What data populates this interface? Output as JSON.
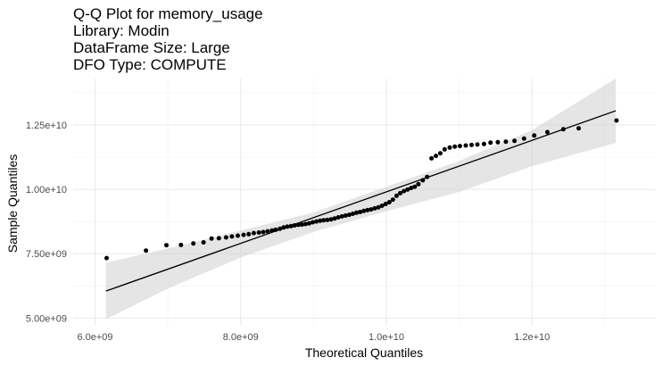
{
  "chart_data": {
    "type": "scatter",
    "title_lines": [
      "Q-Q Plot for memory_usage",
      "Library: Modin",
      "DataFrame Size: Large",
      "DFO Type: COMPUTE"
    ],
    "xlabel": "Theoretical Quantiles",
    "ylabel": "Sample Quantiles",
    "xlim": [
      5700000000.0,
      13700000000.0
    ],
    "ylim": [
      4700000000.0,
      14300000000.0
    ],
    "x_ticks": [
      {
        "value": 6000000000.0,
        "label": "6.0e+09"
      },
      {
        "value": 8000000000.0,
        "label": "8.0e+09"
      },
      {
        "value": 10000000000.0,
        "label": "1.0e+10"
      },
      {
        "value": 12000000000.0,
        "label": "1.2e+10"
      }
    ],
    "y_ticks": [
      {
        "value": 5000000000.0,
        "label": "5.00e+09"
      },
      {
        "value": 7500000000.0,
        "label": "7.50e+09"
      },
      {
        "value": 10000000000.0,
        "label": "1.00e+10"
      },
      {
        "value": 12500000000.0,
        "label": "1.25e+10"
      }
    ],
    "grid": true,
    "reference_line": {
      "x": [
        6150000000.0,
        13150000000.0
      ],
      "y": [
        6050000000.0,
        13050000000.0
      ]
    },
    "confidence_band": {
      "x": [
        6150000000.0,
        7000000000.0,
        8000000000.0,
        9000000000.0,
        10000000000.0,
        11000000000.0,
        12000000000.0,
        13150000000.0
      ],
      "lower": [
        4950000000.0,
        6150000000.0,
        7350000000.0,
        8350000000.0,
        9150000000.0,
        9900000000.0,
        10900000000.0,
        11800000000.0
      ],
      "upper": [
        7150000000.0,
        7700000000.0,
        8400000000.0,
        9100000000.0,
        10100000000.0,
        11100000000.0,
        12300000000.0,
        14300000000.0
      ]
    },
    "points": [
      [
        6160000000.0,
        7330000000.0
      ],
      [
        6700000000.0,
        7620000000.0
      ],
      [
        6980000000.0,
        7830000000.0
      ],
      [
        7180000000.0,
        7840000000.0
      ],
      [
        7350000000.0,
        7900000000.0
      ],
      [
        7490000000.0,
        7940000000.0
      ],
      [
        7600000000.0,
        8090000000.0
      ],
      [
        7700000000.0,
        8100000000.0
      ],
      [
        7800000000.0,
        8130000000.0
      ],
      [
        7880000000.0,
        8170000000.0
      ],
      [
        7960000000.0,
        8200000000.0
      ],
      [
        8040000000.0,
        8230000000.0
      ],
      [
        8110000000.0,
        8260000000.0
      ],
      [
        8180000000.0,
        8300000000.0
      ],
      [
        8250000000.0,
        8320000000.0
      ],
      [
        8310000000.0,
        8340000000.0
      ],
      [
        8370000000.0,
        8370000000.0
      ],
      [
        8430000000.0,
        8400000000.0
      ],
      [
        8480000000.0,
        8430000000.0
      ],
      [
        8540000000.0,
        8470000000.0
      ],
      [
        8590000000.0,
        8520000000.0
      ],
      [
        8640000000.0,
        8550000000.0
      ],
      [
        8690000000.0,
        8570000000.0
      ],
      [
        8740000000.0,
        8600000000.0
      ],
      [
        8790000000.0,
        8620000000.0
      ],
      [
        8840000000.0,
        8630000000.0
      ],
      [
        8890000000.0,
        8650000000.0
      ],
      [
        8940000000.0,
        8680000000.0
      ],
      [
        8990000000.0,
        8720000000.0
      ],
      [
        9040000000.0,
        8750000000.0
      ],
      [
        9090000000.0,
        8780000000.0
      ],
      [
        9140000000.0,
        8800000000.0
      ],
      [
        9190000000.0,
        8810000000.0
      ],
      [
        9240000000.0,
        8830000000.0
      ],
      [
        9290000000.0,
        8870000000.0
      ],
      [
        9340000000.0,
        8910000000.0
      ],
      [
        9390000000.0,
        8950000000.0
      ],
      [
        9440000000.0,
        8980000000.0
      ],
      [
        9490000000.0,
        9010000000.0
      ],
      [
        9540000000.0,
        9050000000.0
      ],
      [
        9590000000.0,
        9090000000.0
      ],
      [
        9640000000.0,
        9120000000.0
      ],
      [
        9690000000.0,
        9160000000.0
      ],
      [
        9740000000.0,
        9190000000.0
      ],
      [
        9790000000.0,
        9220000000.0
      ],
      [
        9840000000.0,
        9260000000.0
      ],
      [
        9890000000.0,
        9300000000.0
      ],
      [
        9940000000.0,
        9360000000.0
      ],
      [
        9990000000.0,
        9430000000.0
      ],
      [
        10040000000.0,
        9500000000.0
      ],
      [
        10090000000.0,
        9600000000.0
      ],
      [
        10140000000.0,
        9750000000.0
      ],
      [
        10190000000.0,
        9850000000.0
      ],
      [
        10240000000.0,
        9930000000.0
      ],
      [
        10290000000.0,
        9990000000.0
      ],
      [
        10340000000.0,
        10050000000.0
      ],
      [
        10390000000.0,
        10100000000.0
      ],
      [
        10440000000.0,
        10200000000.0
      ],
      [
        10500000000.0,
        10350000000.0
      ],
      [
        10560000000.0,
        10480000000.0
      ],
      [
        10620000000.0,
        11200000000.0
      ],
      [
        10680000000.0,
        11300000000.0
      ],
      [
        10740000000.0,
        11400000000.0
      ],
      [
        10800000000.0,
        11550000000.0
      ],
      [
        10870000000.0,
        11620000000.0
      ],
      [
        10940000000.0,
        11660000000.0
      ],
      [
        11010000000.0,
        11680000000.0
      ],
      [
        11090000000.0,
        11700000000.0
      ],
      [
        11170000000.0,
        11720000000.0
      ],
      [
        11250000000.0,
        11740000000.0
      ],
      [
        11340000000.0,
        11760000000.0
      ],
      [
        11430000000.0,
        11810000000.0
      ],
      [
        11530000000.0,
        11830000000.0
      ],
      [
        11640000000.0,
        11850000000.0
      ],
      [
        11760000000.0,
        11880000000.0
      ],
      [
        11890000000.0,
        11970000000.0
      ],
      [
        12030000000.0,
        12090000000.0
      ],
      [
        12210000000.0,
        12220000000.0
      ],
      [
        12430000000.0,
        12330000000.0
      ],
      [
        12640000000.0,
        12370000000.0
      ],
      [
        13160000000.0,
        12670000000.0
      ]
    ]
  }
}
